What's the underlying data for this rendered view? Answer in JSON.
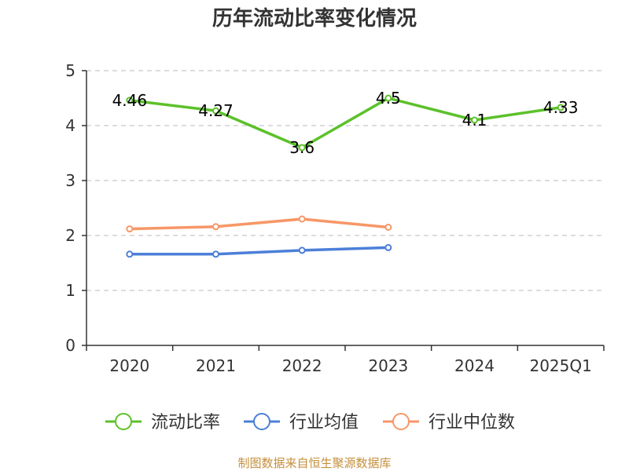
{
  "chart_data": {
    "type": "line",
    "title": "历年流动比率变化情况",
    "categories": [
      "2020",
      "2021",
      "2022",
      "2023",
      "2024",
      "2025Q1"
    ],
    "ylim": [
      0,
      5
    ],
    "yticks": [
      "0",
      "1",
      "2",
      "3",
      "4",
      "5"
    ],
    "grid": true,
    "legend_position": "bottom",
    "series": [
      {
        "name": "流动比率",
        "color": "#5cc12a",
        "values": [
          4.46,
          4.27,
          3.6,
          4.5,
          4.1,
          4.33
        ],
        "data_labels": [
          "4.46",
          "4.27",
          "3.6",
          "4.5",
          "4.1",
          "4.33"
        ]
      },
      {
        "name": "行业均值",
        "color": "#4c7fd8",
        "values": [
          1.66,
          1.66,
          1.73,
          1.78,
          null,
          null
        ]
      },
      {
        "name": "行业中位数",
        "color": "#f79767",
        "values": [
          2.12,
          2.16,
          2.3,
          2.15,
          null,
          null
        ]
      }
    ]
  },
  "source": "制图数据来自恒生聚源数据库"
}
